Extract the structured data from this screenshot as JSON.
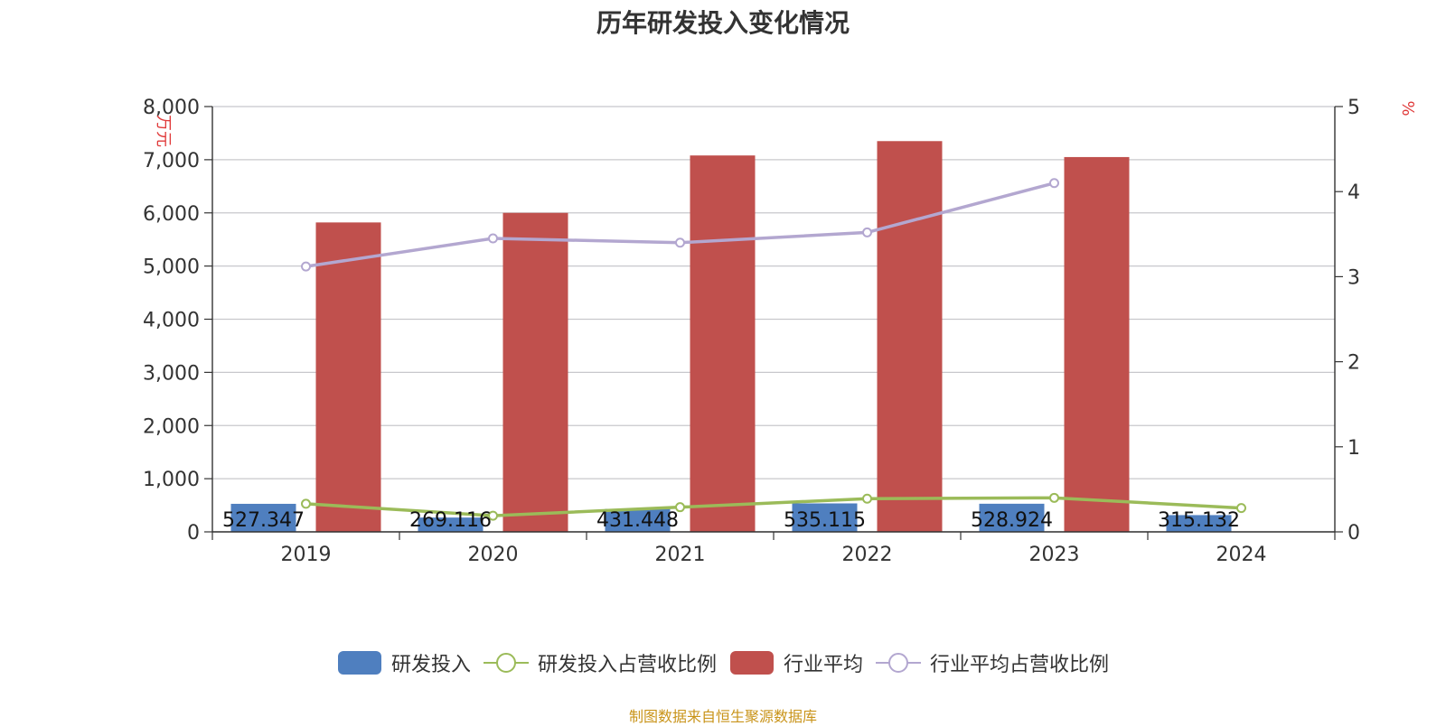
{
  "chart_data": {
    "type": "bar",
    "title": "历年研发投入变化情况",
    "categories": [
      "2019",
      "2020",
      "2021",
      "2022",
      "2023",
      "2024"
    ],
    "y_left": {
      "label": "万元",
      "ylim": [
        0,
        8000
      ],
      "ticks": [
        "0",
        "1,000",
        "2,000",
        "3,000",
        "4,000",
        "5,000",
        "6,000",
        "7,000",
        "8,000"
      ]
    },
    "y_right": {
      "label": "%",
      "ylim": [
        0,
        5
      ],
      "ticks": [
        "0",
        "1",
        "2",
        "3",
        "4",
        "5"
      ]
    },
    "grid": true,
    "legend_position": "bottom",
    "series": [
      {
        "name": "研发投入",
        "type": "bar",
        "axis": "left",
        "color": "#4f7fbf",
        "values": [
          527.347,
          269.116,
          431.448,
          535.115,
          528.924,
          315.132
        ],
        "labels": [
          "527.347",
          "269.116",
          "431.448",
          "535.115",
          "528.924",
          "315.132"
        ]
      },
      {
        "name": "研发投入占营收比例",
        "type": "line",
        "axis": "right",
        "color": "#9bbb59",
        "values": [
          0.33,
          0.19,
          0.29,
          0.39,
          0.4,
          0.28
        ]
      },
      {
        "name": "行业平均",
        "type": "bar",
        "axis": "left",
        "color": "#c0504d",
        "values": [
          5820,
          6000,
          7080,
          7350,
          7050,
          null
        ]
      },
      {
        "name": "行业平均占营收比例",
        "type": "line",
        "axis": "right",
        "color": "#b3a7d0",
        "values": [
          3.12,
          3.45,
          3.4,
          3.52,
          4.1,
          null
        ]
      }
    ]
  },
  "source_text": "制图数据来自恒生聚源数据库"
}
